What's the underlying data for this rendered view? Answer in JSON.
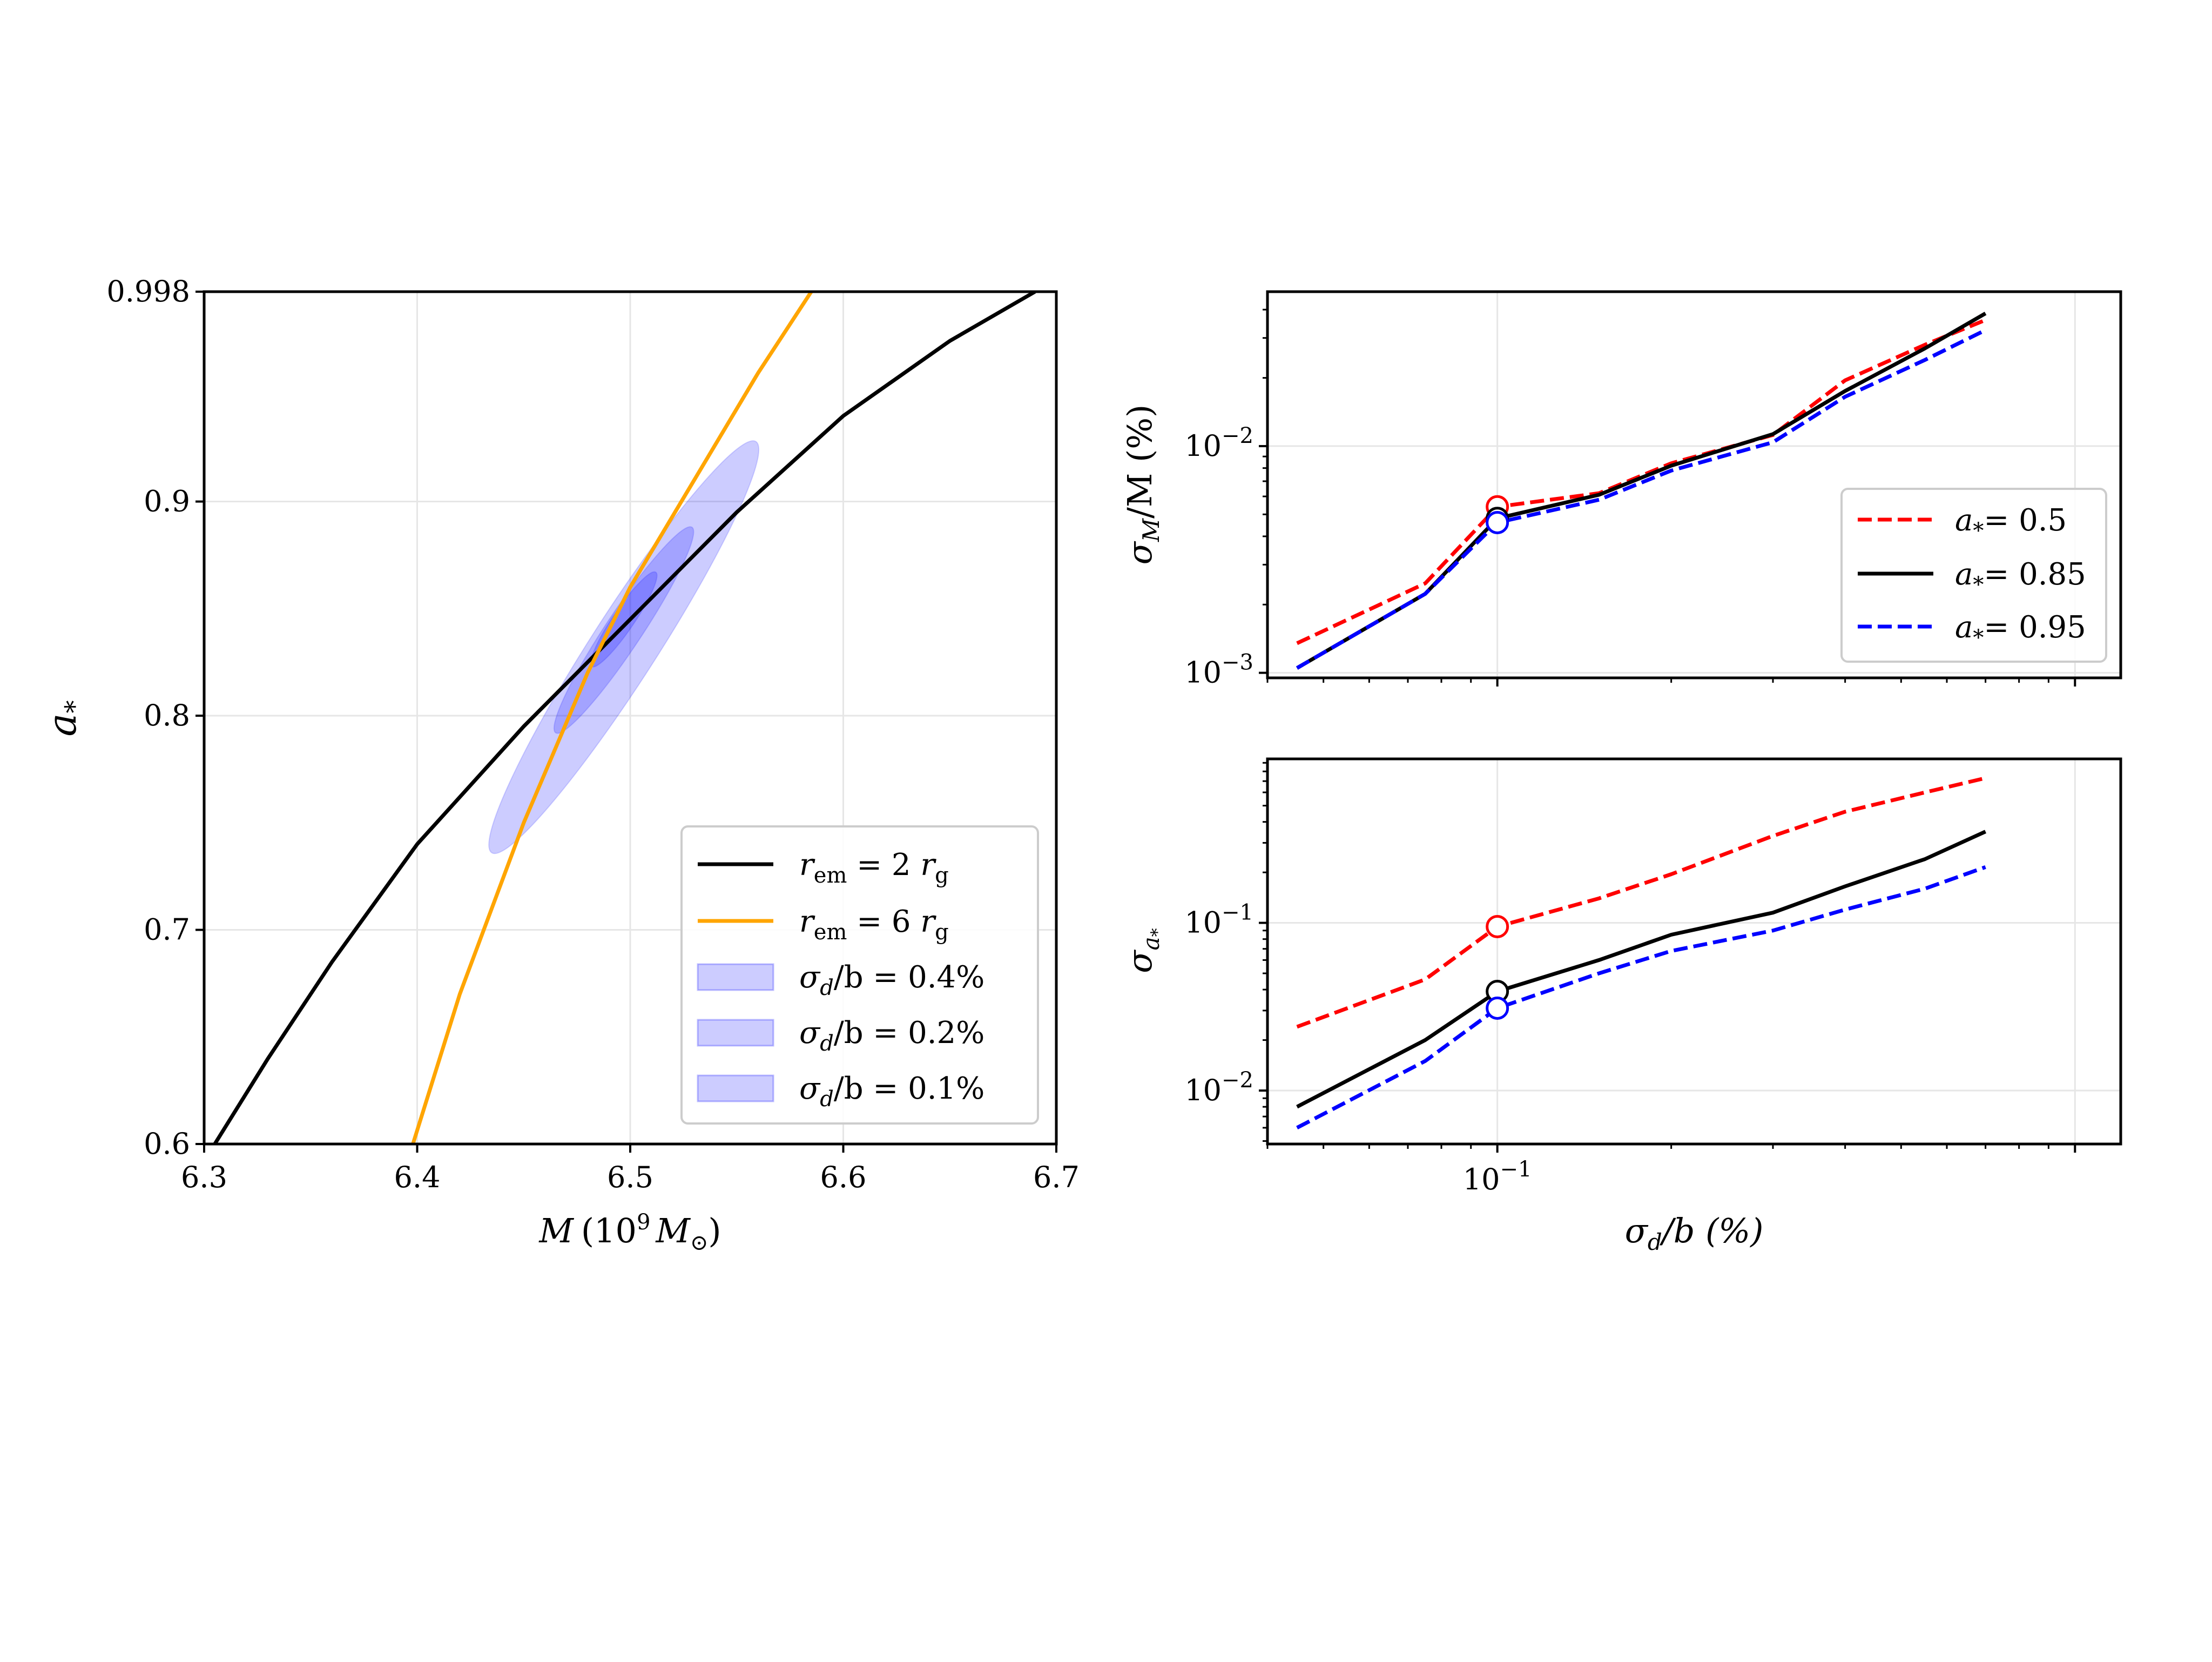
{
  "chart_data": [
    {
      "id": "left",
      "type": "line",
      "xlabel": {
        "main": "M",
        "paren_open": "(10",
        "exp": "9",
        "unit": "M",
        "unit_sub": "⊙",
        "paren_close": ")"
      },
      "ylabel": {
        "main": "a",
        "sub": "*"
      },
      "xlim": [
        6.3,
        6.7
      ],
      "ylim": [
        0.6,
        0.998
      ],
      "xticks": [
        {
          "value": 6.3,
          "label": "6.3"
        },
        {
          "value": 6.4,
          "label": "6.4"
        },
        {
          "value": 6.5,
          "label": "6.5"
        },
        {
          "value": 6.6,
          "label": "6.6"
        },
        {
          "value": 6.7,
          "label": "6.7"
        }
      ],
      "yticks": [
        {
          "value": 0.6,
          "label": "0.6"
        },
        {
          "value": 0.7,
          "label": "0.7"
        },
        {
          "value": 0.8,
          "label": "0.8"
        },
        {
          "value": 0.9,
          "label": "0.9"
        },
        {
          "value": 0.998,
          "label": "0.998"
        }
      ],
      "grid": true,
      "series": [
        {
          "name": "r_em = 2 r_g",
          "color": "#000000",
          "points": [
            [
              6.305,
              0.6
            ],
            [
              6.33,
              0.64
            ],
            [
              6.36,
              0.685
            ],
            [
              6.4,
              0.74
            ],
            [
              6.45,
              0.795
            ],
            [
              6.5,
              0.845
            ],
            [
              6.55,
              0.895
            ],
            [
              6.6,
              0.94
            ],
            [
              6.65,
              0.975
            ],
            [
              6.69,
              0.998
            ]
          ]
        },
        {
          "name": "r_em = 6 r_g",
          "color": "#FFA500",
          "points": [
            [
              6.398,
              0.6
            ],
            [
              6.42,
              0.67
            ],
            [
              6.45,
              0.75
            ],
            [
              6.48,
              0.82
            ],
            [
              6.5,
              0.86
            ],
            [
              6.53,
              0.91
            ],
            [
              6.56,
              0.96
            ],
            [
              6.585,
              0.998
            ]
          ]
        }
      ],
      "ellipses": [
        {
          "name": "σ_d/b = 0.4%",
          "cx": 6.497,
          "cy": 0.832,
          "semi_major_data": [
            0.062,
            0.096
          ],
          "semi_minor_x": 0.0155,
          "color": "#0000ff",
          "alpha": 0.2
        },
        {
          "name": "σ_d/b = 0.2%",
          "cx": 6.497,
          "cy": 0.84,
          "semi_major_data": [
            0.032,
            0.048
          ],
          "semi_minor_x": 0.0085,
          "color": "#0000ff",
          "alpha": 0.2
        },
        {
          "name": "σ_d/b = 0.1%",
          "cx": 6.497,
          "cy": 0.845,
          "semi_major_data": [
            0.015,
            0.022
          ],
          "semi_minor_x": 0.005,
          "color": "#0000ff",
          "alpha": 0.2
        }
      ],
      "legend": {
        "position": "bottom-right",
        "entries": [
          {
            "kind": "line",
            "color": "#000000",
            "pre": "r",
            "sub": "em",
            "mid": " = 2 ",
            "pre2": "r",
            "sub2": "g"
          },
          {
            "kind": "line",
            "color": "#FFA500",
            "pre": "r",
            "sub": "em",
            "mid": " = 6 ",
            "pre2": "r",
            "sub2": "g"
          },
          {
            "kind": "patch",
            "pre": "σ",
            "sub": "d",
            "mid": "/b = 0.4%"
          },
          {
            "kind": "patch",
            "pre": "σ",
            "sub": "d",
            "mid": "/b = 0.2%"
          },
          {
            "kind": "patch",
            "pre": "σ",
            "sub": "d",
            "mid": "/b = 0.1%"
          }
        ]
      }
    },
    {
      "id": "top_right",
      "type": "line",
      "xscale": "log",
      "yscale": "log",
      "xlim": [
        0.04,
        1.2
      ],
      "ylim": [
        0.00095,
        0.048
      ],
      "ylabel": {
        "main": "σ",
        "sub": "M",
        "rest": "/M (%)"
      },
      "yticks": [
        {
          "value": 0.001,
          "base": "10",
          "exp": "−3"
        },
        {
          "value": 0.01,
          "base": "10",
          "exp": "−2"
        }
      ],
      "grid": true,
      "x": [
        0.045,
        0.075,
        0.1,
        0.15,
        0.2,
        0.3,
        0.4,
        0.55,
        0.7
      ],
      "series": [
        {
          "name": "a*= 0.5",
          "color": "#ff0000",
          "dash": true,
          "values": [
            0.00135,
            0.00248,
            0.0054,
            0.0062,
            0.0084,
            0.0112,
            0.0195,
            0.028,
            0.036
          ]
        },
        {
          "name": "a*= 0.85",
          "color": "#000000",
          "dash": false,
          "values": [
            0.00105,
            0.00223,
            0.0048,
            0.0061,
            0.0082,
            0.0113,
            0.0175,
            0.027,
            0.0385
          ]
        },
        {
          "name": "a*= 0.95",
          "color": "#0000ff",
          "dash": true,
          "values": [
            0.00105,
            0.00223,
            0.0046,
            0.0058,
            0.0078,
            0.0104,
            0.0165,
            0.024,
            0.0325
          ]
        }
      ],
      "markers": [
        {
          "x": 0.1,
          "y": 0.0054,
          "color": "#ff0000"
        },
        {
          "x": 0.1,
          "y": 0.0048,
          "color": "#000000"
        },
        {
          "x": 0.1,
          "y": 0.0046,
          "color": "#0000ff"
        }
      ],
      "legend": {
        "position": "bottom-right",
        "entries": [
          {
            "color": "#ff0000",
            "dash": true,
            "pre": "a",
            "sub": "*",
            "mid": "= 0.5"
          },
          {
            "color": "#000000",
            "dash": false,
            "pre": "a",
            "sub": "*",
            "mid": "= 0.85"
          },
          {
            "color": "#0000ff",
            "dash": true,
            "pre": "a",
            "sub": "*",
            "mid": "= 0.95"
          }
        ]
      }
    },
    {
      "id": "bottom_right",
      "type": "line",
      "xscale": "log",
      "yscale": "log",
      "xlim": [
        0.04,
        1.2
      ],
      "ylim": [
        0.0048,
        0.95
      ],
      "xlabel": {
        "main": "σ",
        "sub": "d",
        "rest": "/b (%)"
      },
      "ylabel": {
        "main": "σ",
        "sub": "a",
        "subsub": "*"
      },
      "xticks": [
        {
          "value": 0.1,
          "base": "10",
          "exp": "−1"
        }
      ],
      "yticks": [
        {
          "value": 0.01,
          "base": "10",
          "exp": "−2"
        },
        {
          "value": 0.1,
          "base": "10",
          "exp": "−1"
        }
      ],
      "grid": true,
      "x": [
        0.045,
        0.075,
        0.1,
        0.15,
        0.2,
        0.3,
        0.4,
        0.55,
        0.7
      ],
      "series": [
        {
          "name": "a*= 0.5",
          "color": "#ff0000",
          "dash": true,
          "values": [
            0.024,
            0.046,
            0.095,
            0.14,
            0.195,
            0.33,
            0.46,
            0.6,
            0.73
          ]
        },
        {
          "name": "a*= 0.85",
          "color": "#000000",
          "dash": false,
          "values": [
            0.008,
            0.02,
            0.039,
            0.06,
            0.085,
            0.115,
            0.165,
            0.24,
            0.35
          ]
        },
        {
          "name": "a*= 0.95",
          "color": "#0000ff",
          "dash": true,
          "values": [
            0.006,
            0.015,
            0.031,
            0.05,
            0.068,
            0.09,
            0.12,
            0.16,
            0.215
          ]
        }
      ],
      "markers": [
        {
          "x": 0.1,
          "y": 0.095,
          "color": "#ff0000"
        },
        {
          "x": 0.1,
          "y": 0.039,
          "color": "#000000"
        },
        {
          "x": 0.1,
          "y": 0.031,
          "color": "#0000ff"
        }
      ]
    }
  ]
}
